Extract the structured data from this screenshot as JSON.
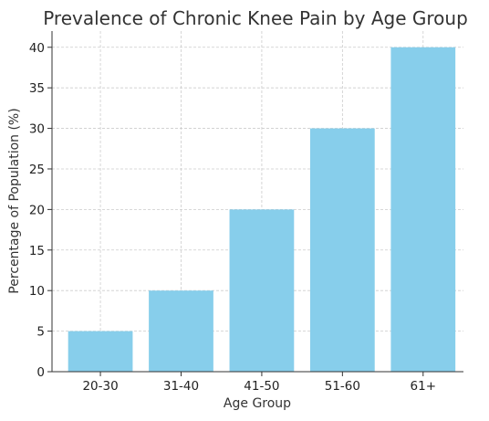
{
  "chart_data": {
    "type": "bar",
    "title": "Prevalence of Chronic Knee Pain by Age Group",
    "xlabel": "Age Group",
    "ylabel": "Percentage of Population (%)",
    "categories": [
      "20-30",
      "31-40",
      "41-50",
      "51-60",
      "61+"
    ],
    "values": [
      5,
      10,
      20,
      30,
      40
    ],
    "ylim": [
      0,
      42
    ],
    "yticks": [
      "0",
      "5",
      "10",
      "15",
      "20",
      "25",
      "30",
      "35",
      "40"
    ],
    "grid": true,
    "bar_color": "#87ceeb"
  }
}
